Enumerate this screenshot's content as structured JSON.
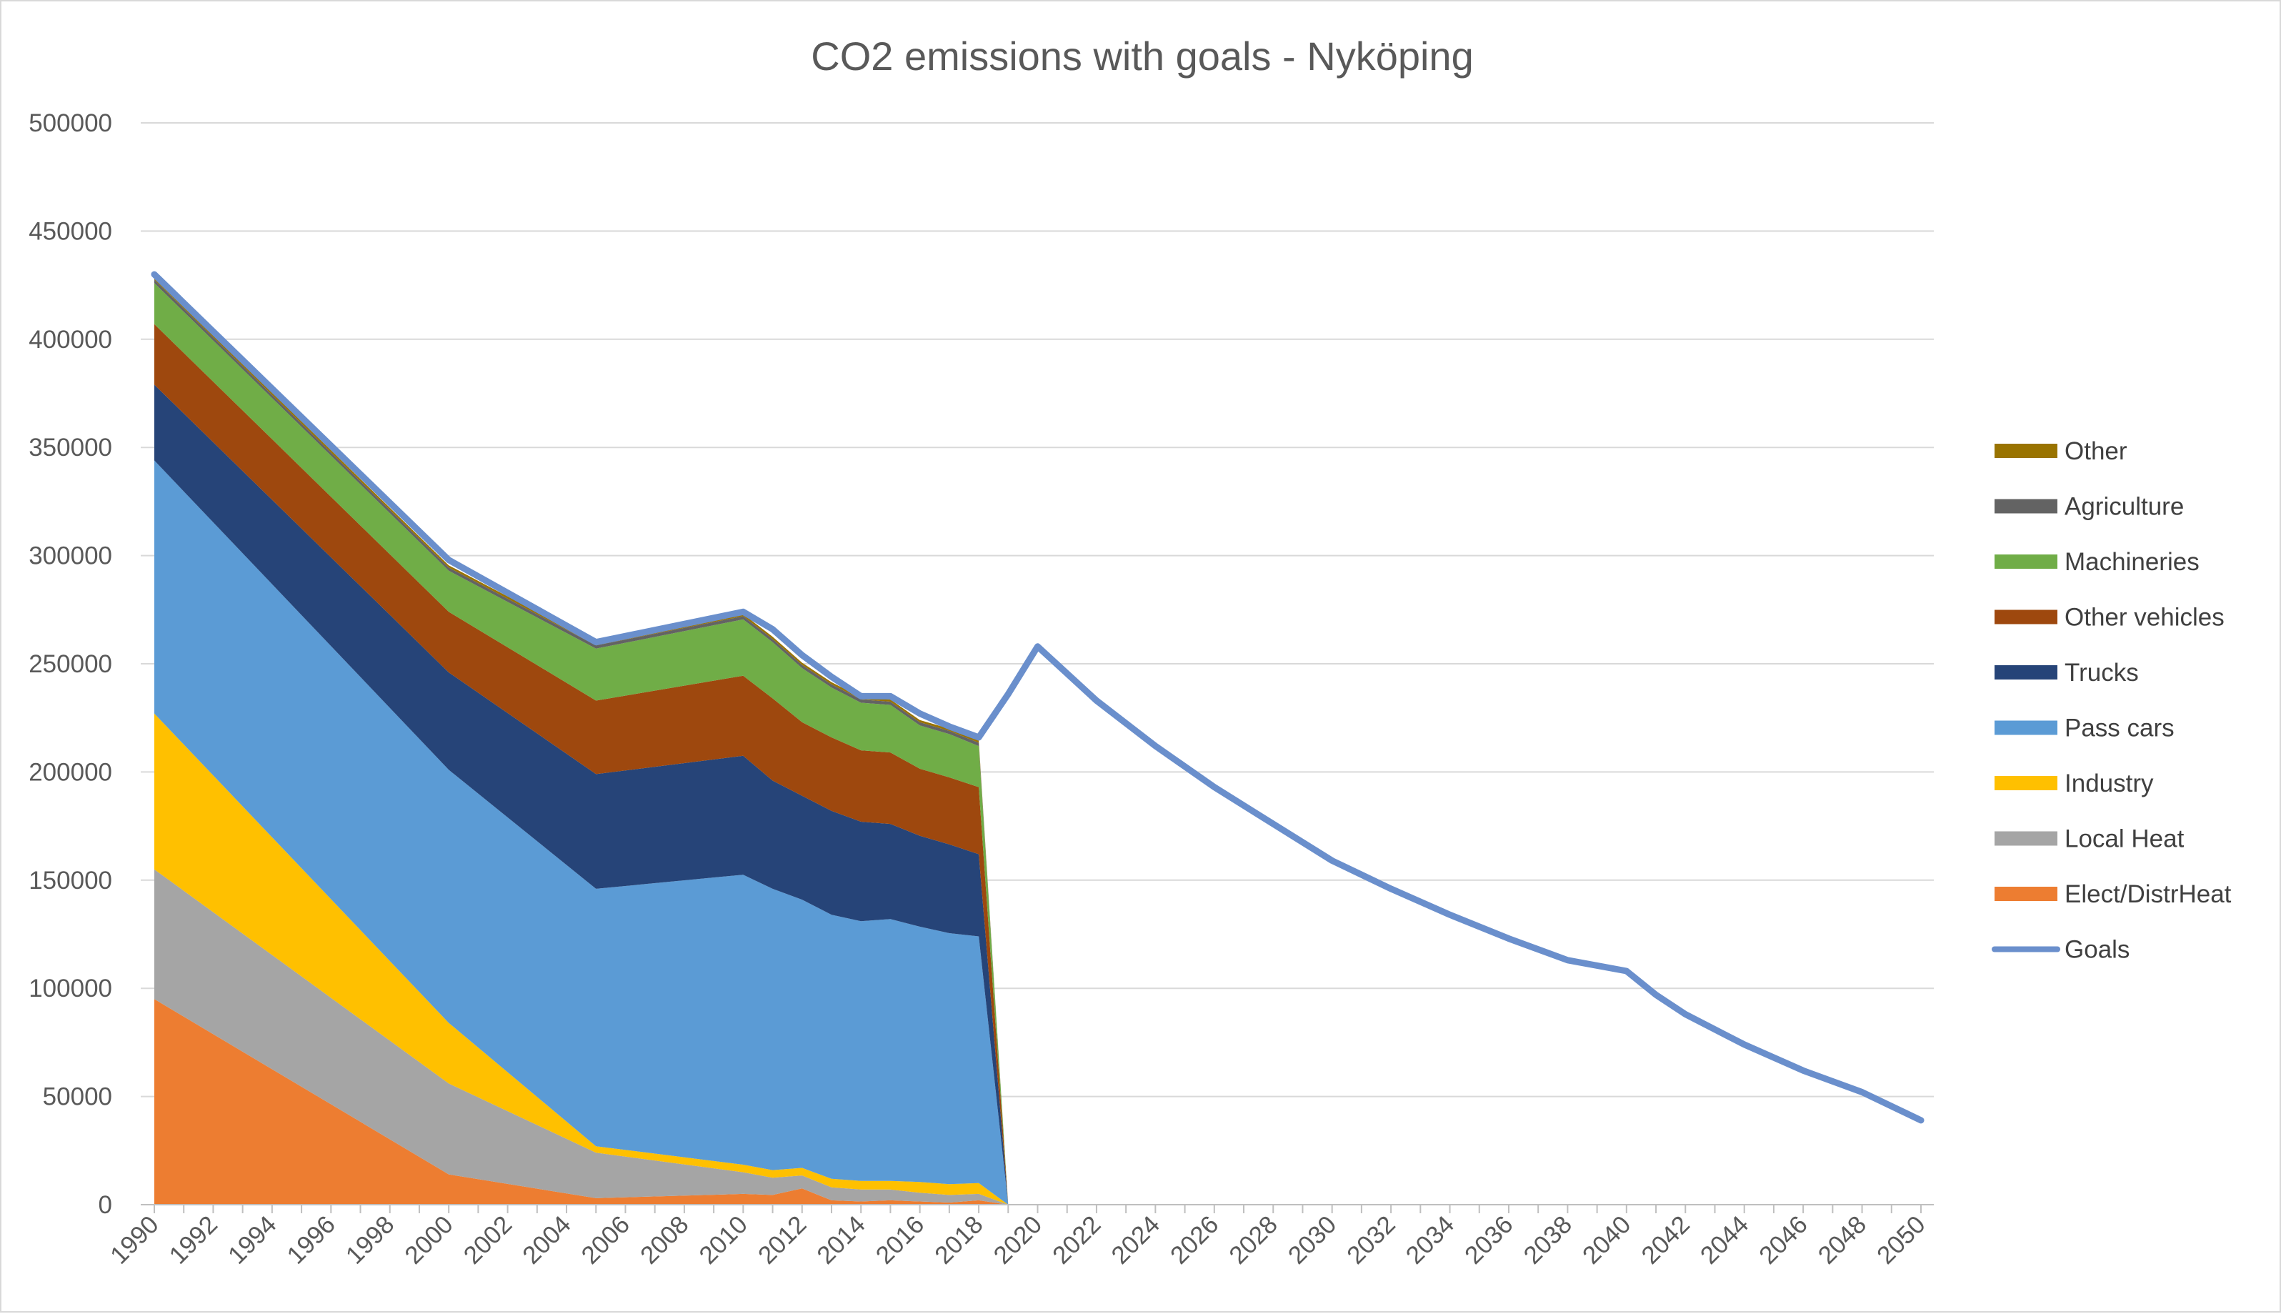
{
  "chart_data": {
    "type": "area",
    "title": "CO2 emissions with goals - Nyköping",
    "xlabel": "",
    "ylabel": "",
    "ylim": [
      0,
      500000
    ],
    "yticks": [
      0,
      50000,
      100000,
      150000,
      200000,
      250000,
      300000,
      350000,
      400000,
      450000,
      500000
    ],
    "xlim": [
      1990,
      2050
    ],
    "xticks": [
      1990,
      1992,
      1994,
      1996,
      1998,
      2000,
      2002,
      2004,
      2006,
      2008,
      2010,
      2012,
      2014,
      2016,
      2018,
      2020,
      2022,
      2024,
      2026,
      2028,
      2030,
      2032,
      2034,
      2036,
      2038,
      2040,
      2042,
      2044,
      2046,
      2048,
      2050
    ],
    "grid": true,
    "legend_position": "right",
    "stack_years": [
      1990,
      2000,
      2005,
      2010,
      2011,
      2012,
      2013,
      2014,
      2015,
      2016,
      2017,
      2018,
      2019
    ],
    "series": [
      {
        "name": "Elect/DistrHeat",
        "color": "#ED7D31",
        "values": [
          95000,
          14000,
          3000,
          5000,
          4500,
          7500,
          2000,
          1500,
          2000,
          1500,
          1000,
          2000,
          0
        ]
      },
      {
        "name": "Local Heat",
        "color": "#A5A5A5",
        "values": [
          60000,
          42000,
          21000,
          10000,
          8000,
          6000,
          6000,
          5500,
          5000,
          4000,
          3500,
          3000,
          0
        ]
      },
      {
        "name": "Industry",
        "color": "#FFC000",
        "values": [
          72000,
          28000,
          3000,
          3500,
          3500,
          3500,
          4000,
          4000,
          4000,
          5000,
          5000,
          5000,
          0
        ]
      },
      {
        "name": "Pass cars",
        "color": "#5B9BD5",
        "values": [
          117000,
          117000,
          119000,
          134000,
          130000,
          124000,
          122000,
          120000,
          121000,
          118000,
          116000,
          114000,
          0
        ]
      },
      {
        "name": "Trucks",
        "color": "#264478",
        "values": [
          35000,
          45000,
          53000,
          55000,
          50000,
          48000,
          48000,
          46000,
          44000,
          42000,
          41000,
          38000,
          0
        ]
      },
      {
        "name": "Other vehicles",
        "color": "#9E480E",
        "values": [
          28000,
          28000,
          34000,
          37000,
          38000,
          34000,
          34000,
          33000,
          33000,
          31000,
          31000,
          31000,
          0
        ]
      },
      {
        "name": "Machineries",
        "color": "#70AD47",
        "values": [
          19000,
          19000,
          24000,
          26000,
          26000,
          25000,
          23000,
          22000,
          22000,
          20000,
          20000,
          19000,
          0
        ]
      },
      {
        "name": "Agriculture",
        "color": "#636363",
        "values": [
          1500,
          1500,
          1500,
          1500,
          1500,
          1500,
          1500,
          1500,
          1500,
          1500,
          1500,
          1500,
          0
        ]
      },
      {
        "name": "Other",
        "color": "#997300",
        "values": [
          1000,
          1000,
          1000,
          1000,
          1000,
          1000,
          1000,
          1000,
          1000,
          1000,
          1000,
          1000,
          0
        ]
      }
    ],
    "goals": {
      "name": "Goals",
      "color": "#6A8FCC",
      "x": [
        1990,
        2000,
        2005,
        2010,
        2011,
        2012,
        2013,
        2014,
        2015,
        2016,
        2017,
        2018,
        2019,
        2020,
        2022,
        2024,
        2026,
        2028,
        2030,
        2032,
        2034,
        2036,
        2038,
        2040,
        2041,
        2042,
        2044,
        2046,
        2048,
        2050
      ],
      "y": [
        430000,
        298000,
        260000,
        274000,
        266000,
        254000,
        244000,
        235000,
        235000,
        227000,
        221000,
        216000,
        236000,
        258000,
        233000,
        212000,
        193000,
        176000,
        159000,
        146000,
        134000,
        123000,
        113000,
        108000,
        97000,
        88000,
        74000,
        62000,
        52000,
        39000
      ]
    },
    "legend_order": [
      "Other",
      "Agriculture",
      "Machineries",
      "Other vehicles",
      "Trucks",
      "Pass cars",
      "Industry",
      "Local Heat",
      "Elect/DistrHeat",
      "Goals"
    ]
  }
}
